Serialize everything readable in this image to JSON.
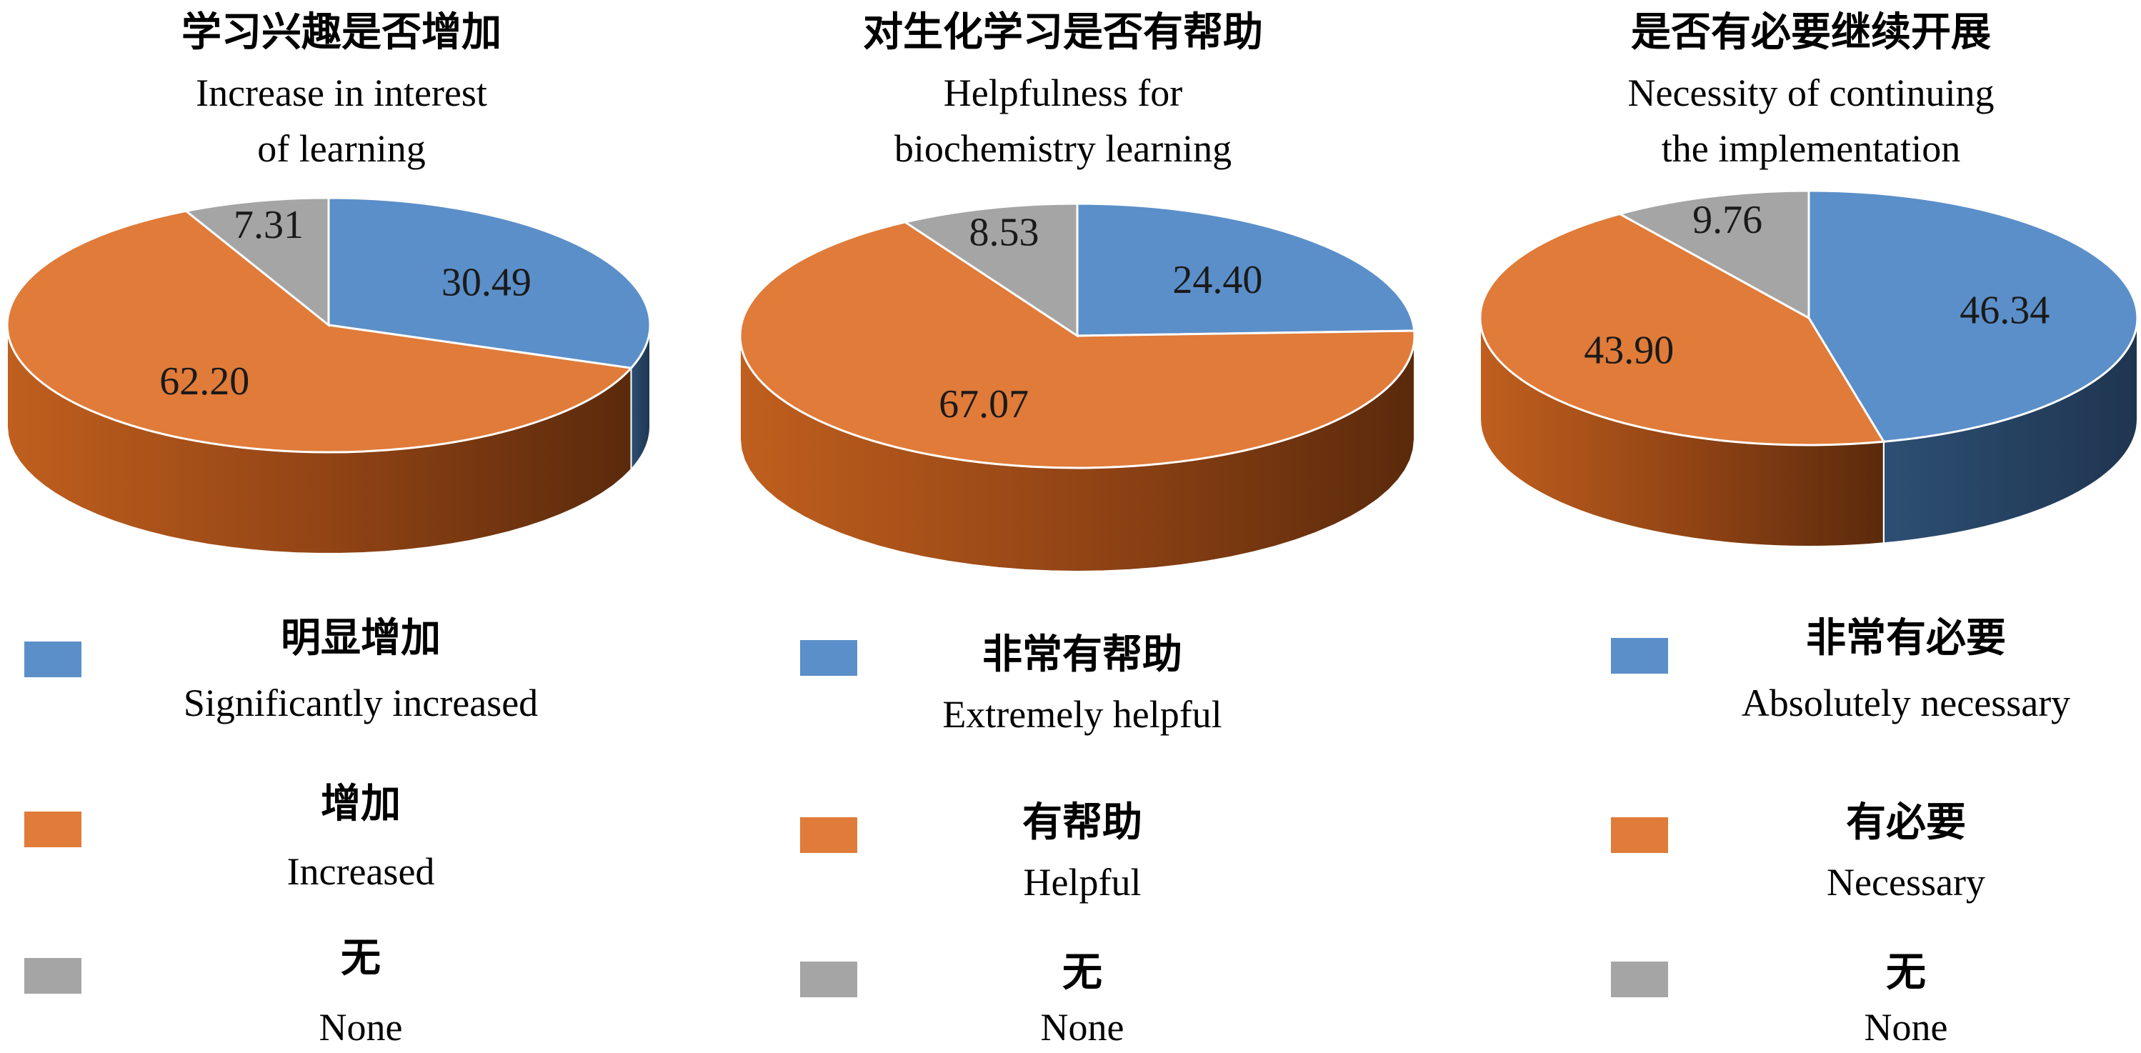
{
  "chart_data": [
    {
      "type": "pie",
      "title": "学习兴趣是否增加",
      "subtitle": [
        "Increase in interest",
        "of learning"
      ],
      "categories": [
        "明显增加 Significantly increased",
        "增加 Increased",
        "无 None"
      ],
      "values": [
        30.49,
        62.2,
        7.31
      ],
      "labels": [
        "30.49",
        "62.20",
        "7.31"
      ],
      "legend": [
        {
          "zh": "明显增加",
          "en": "Significantly increased",
          "color": "#5b8fc9"
        },
        {
          "zh": "增加",
          "en": "Increased",
          "color": "#e07b39"
        },
        {
          "zh": "无",
          "en": "None",
          "color": "#a5a5a5"
        }
      ],
      "legend_position": "bottom"
    },
    {
      "type": "pie",
      "title": "对生化学习是否有帮助",
      "subtitle": [
        "Helpfulness for",
        "biochemistry learning"
      ],
      "categories": [
        "非常有帮助 Extremely helpful",
        "有帮助 Helpful",
        "无 None"
      ],
      "values": [
        24.4,
        67.07,
        8.53
      ],
      "labels": [
        "24.40",
        "67.07",
        "8.53"
      ],
      "legend": [
        {
          "zh": "非常有帮助",
          "en": "Extremely helpful",
          "color": "#5b8fc9"
        },
        {
          "zh": "有帮助",
          "en": "Helpful",
          "color": "#e07b39"
        },
        {
          "zh": "无",
          "en": "None",
          "color": "#a5a5a5"
        }
      ],
      "legend_position": "bottom"
    },
    {
      "type": "pie",
      "title": "是否有必要继续开展",
      "subtitle": [
        "Necessity of continuing",
        "the implementation"
      ],
      "categories": [
        "非常有必要 Absolutely necessary",
        "有必要 Necessary",
        "无 None"
      ],
      "values": [
        46.34,
        43.9,
        9.76
      ],
      "labels": [
        "46.34",
        "43.90",
        "9.76"
      ],
      "legend": [
        {
          "zh": "非常有必要",
          "en": "Absolutely necessary",
          "color": "#5b8fc9"
        },
        {
          "zh": "有必要",
          "en": "Necessary",
          "color": "#e07b39"
        },
        {
          "zh": "无",
          "en": "None",
          "color": "#a5a5a5"
        }
      ],
      "legend_position": "bottom"
    }
  ]
}
